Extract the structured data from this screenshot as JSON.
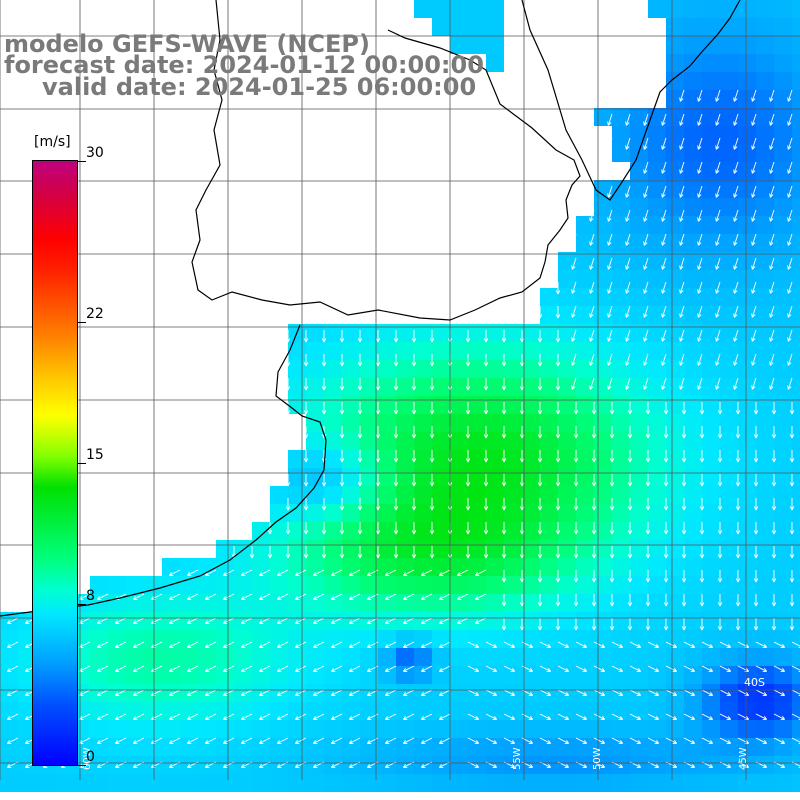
{
  "title": {
    "model": "modelo GEFS-WAVE (NCEP)",
    "forecast": "forecast date: 2024-01-12 00:00:00",
    "valid": "valid date: 2024-01-25 06:00:00"
  },
  "colorbar": {
    "units": "[m/s]",
    "ticks": [
      {
        "label": "30",
        "value": 30
      },
      {
        "label": "22",
        "value": 22
      },
      {
        "label": "15",
        "value": 15
      },
      {
        "label": "8",
        "value": 8
      },
      {
        "label": "0",
        "value": 0
      }
    ],
    "range": [
      0,
      30
    ]
  },
  "colors": {
    "coast": "#000000",
    "grid": "#555555",
    "arrow": "#ffffff",
    "title": "#7a7a7a"
  },
  "map": {
    "lat_labels": [
      "40S"
    ],
    "lon_labels": [
      "60W",
      "55W",
      "50W",
      "45W"
    ]
  }
}
